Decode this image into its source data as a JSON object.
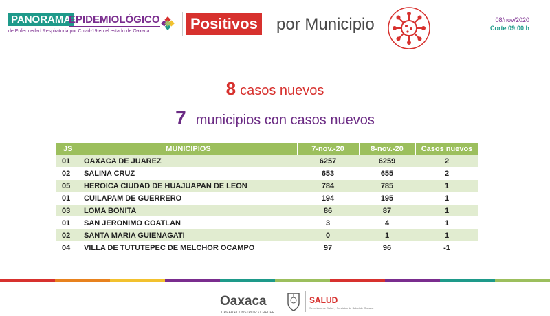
{
  "header": {
    "panorama": "PANORAMA",
    "epidemiologico": "EPIDEMIOLÓGICO",
    "subtitle": "de Enfermedad Respiratoria por Covid-19 en el estado de Oaxaca",
    "positivos": "Positivos",
    "por_municipio": "por Municipio",
    "date": "08/nov/2020",
    "corte": "Corte 09:00 h"
  },
  "summary": {
    "new_cases_count": "8",
    "new_cases_label": "casos nuevos",
    "municipalities_count": "7",
    "municipalities_label": "municipios con casos nuevos"
  },
  "table": {
    "headers": {
      "js": "JS",
      "municipio": "MUNICIPIOS",
      "d1": "7-nov.-20",
      "d2": "8-nov.-20",
      "nuevos": "Casos nuevos"
    },
    "rows": [
      {
        "js": "01",
        "municipio": "OAXACA DE JUAREZ",
        "d1": "6257",
        "d2": "6259",
        "nuevos": "2"
      },
      {
        "js": "02",
        "municipio": "SALINA CRUZ",
        "d1": "653",
        "d2": "655",
        "nuevos": "2"
      },
      {
        "js": "05",
        "municipio": "HEROICA CIUDAD DE HUAJUAPAN DE LEON",
        "d1": "784",
        "d2": "785",
        "nuevos": "1"
      },
      {
        "js": "01",
        "municipio": "CUILAPAM DE GUERRERO",
        "d1": "194",
        "d2": "195",
        "nuevos": "1"
      },
      {
        "js": "03",
        "municipio": "LOMA BONITA",
        "d1": "86",
        "d2": "87",
        "nuevos": "1"
      },
      {
        "js": "01",
        "municipio": "SAN JERONIMO COATLAN",
        "d1": "3",
        "d2": "4",
        "nuevos": "1"
      },
      {
        "js": "02",
        "municipio": "SANTA MARIA GUIENAGATI",
        "d1": "0",
        "d2": "1",
        "nuevos": "1"
      },
      {
        "js": "04",
        "municipio": "VILLA DE TUTUTEPEC DE MELCHOR OCAMPO",
        "d1": "97",
        "d2": "96",
        "nuevos": "-1"
      }
    ]
  },
  "footer": {
    "oaxaca": "Oaxaca",
    "oaxaca_tagline": "CREAR • CONSTRUIR • CRECER",
    "salud": "SALUD",
    "salud_sub": "Secretaría de Salud y Servicios de Salud de Oaxaca",
    "stripe_colors": [
      "#d7312e",
      "#e8821e",
      "#f2c12e",
      "#7a2d8e",
      "#1e9a8a",
      "#9cbf5d",
      "#d7312e",
      "#7a2d8e",
      "#1e9a8a",
      "#9cbf5d"
    ]
  },
  "colors": {
    "teal": "#1e9a8a",
    "purple": "#7a2d8e",
    "red": "#d7312e",
    "table_header_green": "#9cbf5d",
    "table_row_tint": "#e1ecd0"
  }
}
